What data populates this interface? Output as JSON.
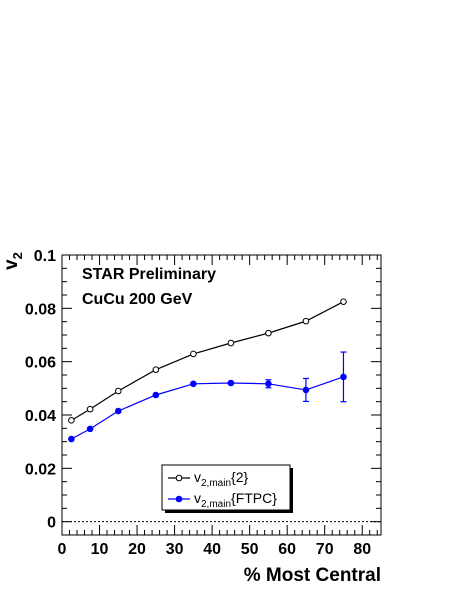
{
  "chart_data": {
    "type": "line",
    "xlabel": "% Most Central",
    "ylabel": "v",
    "ylabel_sub": "2",
    "xlim": [
      0,
      85
    ],
    "ylim": [
      -0.005,
      0.1
    ],
    "x_ticks": [
      0,
      10,
      20,
      30,
      40,
      50,
      60,
      70,
      80
    ],
    "y_ticks": [
      0,
      0.02,
      0.04,
      0.06,
      0.08,
      0.1
    ],
    "y_tick_labels": [
      "0",
      "0.02",
      "0.04",
      "0.06",
      "0.08",
      "0.1"
    ],
    "grid": false,
    "reference_line": {
      "y": 0,
      "style": "dotted"
    },
    "annotations": [
      "STAR Preliminary",
      "CuCu 200 GeV"
    ],
    "legend_position": "bottom-center",
    "series": [
      {
        "label_main": "v",
        "label_sub": "2,main",
        "label_suffix": "{2}",
        "color": "#000000",
        "marker": "open-circle",
        "x": [
          2.5,
          7.5,
          15,
          25,
          35,
          45,
          55,
          65,
          75
        ],
        "y": [
          0.038,
          0.0422,
          0.049,
          0.057,
          0.0629,
          0.067,
          0.0707,
          0.0752,
          0.0825
        ],
        "err": [
          0,
          0,
          0,
          0,
          0,
          0,
          0,
          0,
          0
        ]
      },
      {
        "label_main": "v",
        "label_sub": "2,main",
        "label_suffix": "{FTPC}",
        "color": "#0000ff",
        "marker": "filled-circle",
        "x": [
          2.5,
          7.5,
          15,
          25,
          35,
          45,
          55,
          65,
          75
        ],
        "y": [
          0.031,
          0.0348,
          0.0415,
          0.0475,
          0.0517,
          0.052,
          0.0517,
          0.0494,
          0.0543
        ],
        "err": [
          0,
          0,
          0,
          0,
          0,
          0,
          0.0015,
          0.0043,
          0.0093
        ]
      }
    ]
  }
}
